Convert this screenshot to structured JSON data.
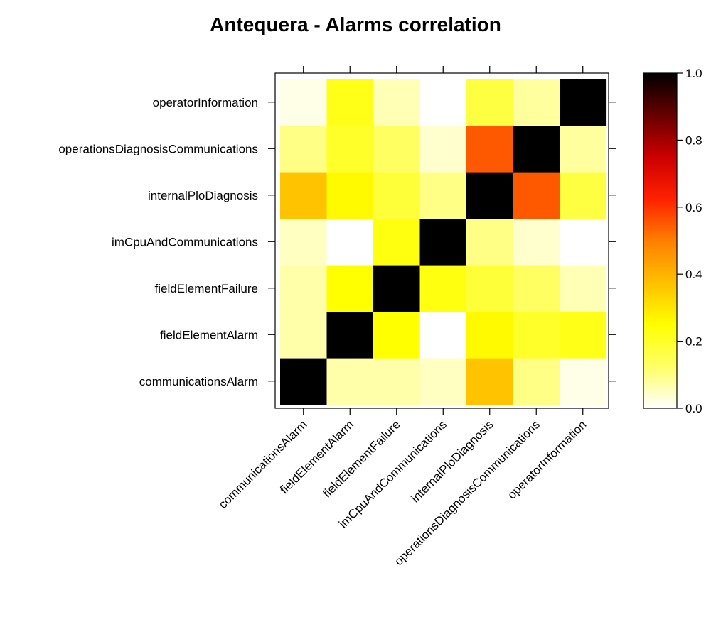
{
  "chart_data": {
    "type": "heatmap",
    "title": "Antequera - Alarms correlation",
    "xlabel": "",
    "ylabel": "",
    "categories": [
      "communicationsAlarm",
      "fieldElementAlarm",
      "fieldElementFailure",
      "imCpuAndCommunications",
      "internalPloDiagnosis",
      "operationsDiagnosisCommunications",
      "operatorInformation"
    ],
    "matrix": [
      [
        1.0,
        0.07,
        0.07,
        0.05,
        0.37,
        0.1,
        0.02
      ],
      [
        0.07,
        1.0,
        0.25,
        0.0,
        0.26,
        0.2,
        0.22
      ],
      [
        0.07,
        0.25,
        1.0,
        0.23,
        0.18,
        0.13,
        0.06
      ],
      [
        0.05,
        0.0,
        0.23,
        1.0,
        0.1,
        0.04,
        0.0
      ],
      [
        0.37,
        0.26,
        0.18,
        0.1,
        1.0,
        0.55,
        0.17
      ],
      [
        0.1,
        0.2,
        0.13,
        0.04,
        0.55,
        1.0,
        0.08
      ],
      [
        0.02,
        0.22,
        0.06,
        0.0,
        0.17,
        0.08,
        1.0
      ]
    ],
    "color_scale": {
      "range": [
        0.0,
        1.0
      ],
      "ticks": [
        "0.0",
        "0.2",
        "0.4",
        "0.6",
        "0.8",
        "1.0"
      ],
      "colors": [
        "#ffffff",
        "#ffff66",
        "#ffff00",
        "#ffc000",
        "#ff7f00",
        "#ff2000",
        "#cc0000",
        "#660000",
        "#000000"
      ]
    },
    "legend": "right",
    "grid": false
  }
}
